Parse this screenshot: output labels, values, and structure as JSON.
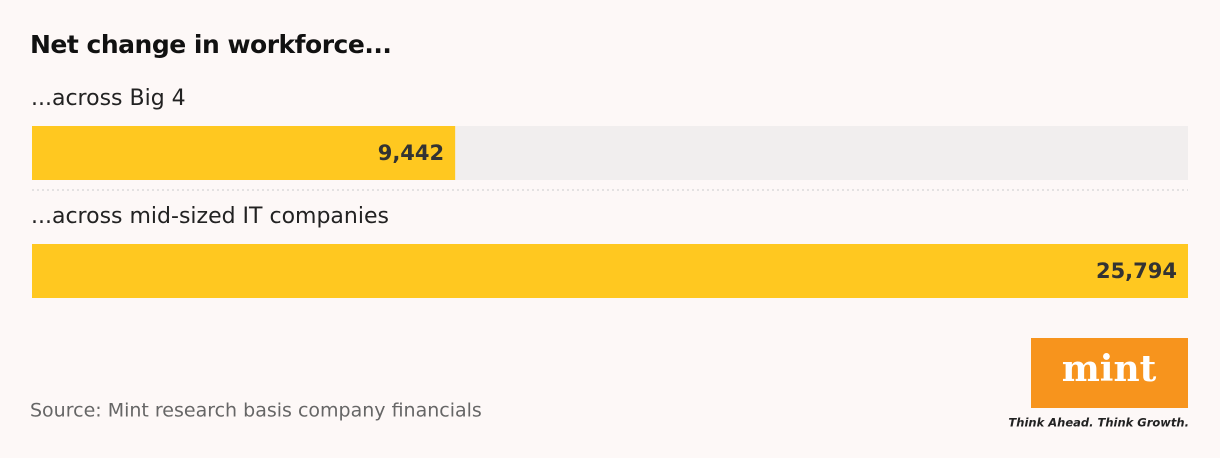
{
  "chart_data": {
    "type": "bar",
    "title": "Net change in workforce...",
    "categories": [
      "...across Big 4",
      "...across mid-sized IT companies"
    ],
    "values": [
      9442,
      25794
    ],
    "value_labels": [
      "9,442",
      "25,794"
    ],
    "color": "#ffc820",
    "track_color": "#f1eeee",
    "xlim": [
      0,
      25794
    ],
    "source": "Source: Mint research basis company financials"
  },
  "logo": {
    "text": "mint",
    "tagline": "Think Ahead. Think Growth."
  }
}
